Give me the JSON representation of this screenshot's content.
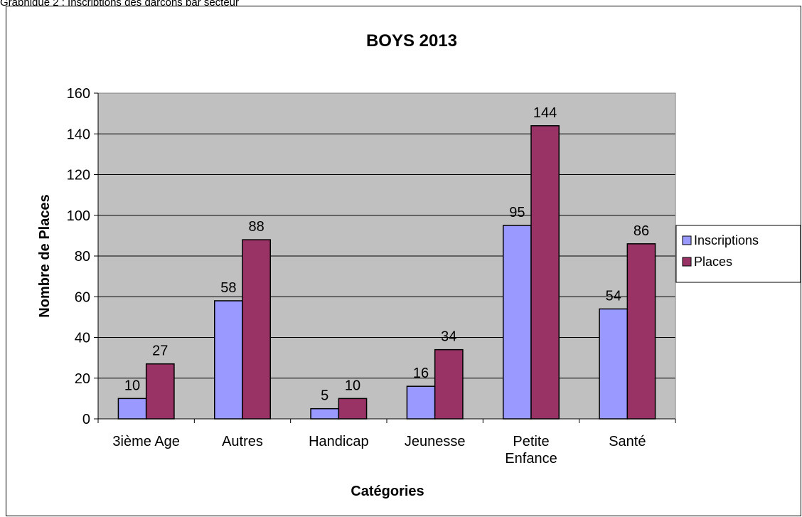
{
  "caption": "Graphique 2 : Inscriptions des garçons par secteur",
  "chart_data": {
    "type": "bar",
    "title": "BOYS 2013",
    "xlabel": "Catégories",
    "ylabel": "Nombre de Places",
    "categories": [
      [
        "3ième Age"
      ],
      [
        "Autres"
      ],
      [
        "Handicap"
      ],
      [
        "Jeunesse"
      ],
      [
        "Petite",
        "Enfance"
      ],
      [
        "Santé"
      ]
    ],
    "series": [
      {
        "name": "Inscriptions",
        "color": "#9999ff",
        "values": [
          10,
          58,
          5,
          16,
          95,
          54
        ]
      },
      {
        "name": "Places",
        "color": "#993366",
        "values": [
          27,
          88,
          10,
          34,
          144,
          86
        ]
      }
    ],
    "ylim": [
      0,
      160
    ],
    "yticks": [
      0,
      20,
      40,
      60,
      80,
      100,
      120,
      140,
      160
    ],
    "grid": true,
    "plot_background": "#c0c0c0",
    "legend": "right"
  }
}
